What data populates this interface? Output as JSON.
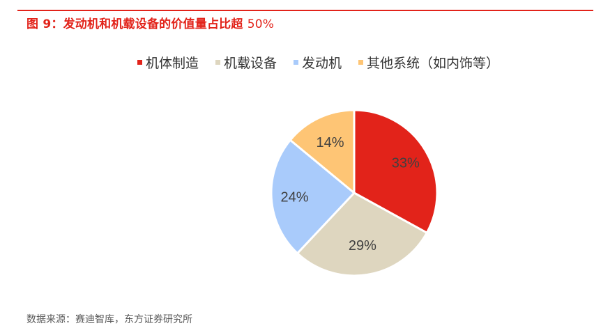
{
  "figure": {
    "title_prefix": "图 9：",
    "title_main": "发动机和机载设备的价值量占比超 ",
    "title_num": "50%",
    "accent_color": "#e2231a"
  },
  "legend": [
    {
      "label": "机体制造",
      "color": "#e2231a"
    },
    {
      "label": "机载设备",
      "color": "#ded6bf"
    },
    {
      "label": "发动机",
      "color": "#a9cbfb"
    },
    {
      "label": "其他系统（如内饰等）",
      "color": "#fec575"
    }
  ],
  "source": "数据来源：赛迪智库，东方证券研究所",
  "chart_data": {
    "type": "pie",
    "title": "图 9：发动机和机载设备的价值量占比超 50%",
    "categories": [
      "机体制造",
      "机载设备",
      "发动机",
      "其他系统（如内饰等）"
    ],
    "values": [
      33,
      29,
      24,
      14
    ],
    "labels": [
      "33%",
      "29%",
      "24%",
      "14%"
    ],
    "colors": [
      "#e2231a",
      "#ded6bf",
      "#a9cbfb",
      "#fec575"
    ],
    "start_angle": "12 o'clock, clockwise",
    "legend_position": "top",
    "data_labels": "inside, percentage"
  }
}
